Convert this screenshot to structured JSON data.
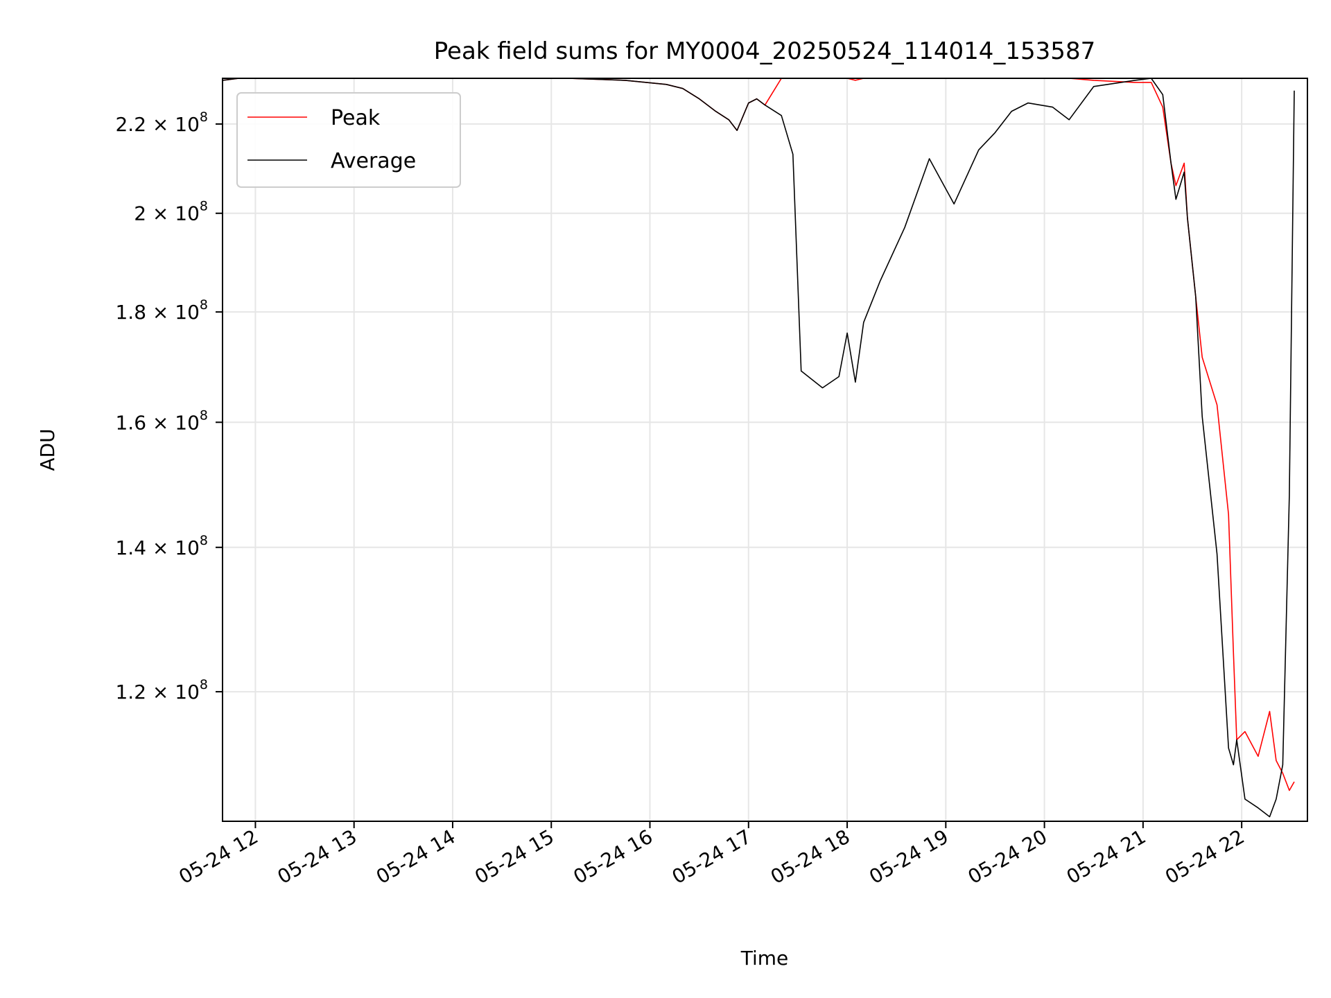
{
  "chart_data": {
    "type": "line",
    "title": "Peak field sums for MY0004_20250524_114014_153587",
    "xlabel": "Time",
    "ylabel": "ADU",
    "yscale": "log",
    "ylim": [
      104500000,
      231000000
    ],
    "xlim": [
      "05-24 11:40",
      "05-24 22:40"
    ],
    "grid": true,
    "legend_position": "upper left",
    "x_ticks": [
      "05-24 12",
      "05-24 13",
      "05-24 14",
      "05-24 15",
      "05-24 16",
      "05-24 17",
      "05-24 18",
      "05-24 19",
      "05-24 20",
      "05-24 21",
      "05-24 22"
    ],
    "y_ticks": [
      {
        "value": 120000000,
        "mantissa": "1.2",
        "exponent": "8"
      },
      {
        "value": 140000000,
        "mantissa": "1.4",
        "exponent": "8"
      },
      {
        "value": 160000000,
        "mantissa": "1.6",
        "exponent": "8"
      },
      {
        "value": 180000000,
        "mantissa": "1.8",
        "exponent": "8"
      },
      {
        "value": 200000000,
        "mantissa": "2",
        "exponent": "8"
      },
      {
        "value": 220000000,
        "mantissa": "2.2",
        "exponent": "8"
      }
    ],
    "series": [
      {
        "name": "Peak",
        "color": "#ff0000",
        "linewidth": 1,
        "x": [
          "05-24 11:40",
          "05-24 11:50",
          "05-24 14:10",
          "05-24 15:10",
          "05-24 15:45",
          "05-24 16:10",
          "05-24 16:20",
          "05-24 16:30",
          "05-24 16:40",
          "05-24 16:48",
          "05-24 16:53",
          "05-24 17:00",
          "05-24 17:05",
          "05-24 17:10",
          "05-24 17:20",
          "05-24 17:27",
          "05-24 17:32",
          "05-24 17:45",
          "05-24 17:55",
          "05-24 18:00",
          "05-24 18:05",
          "05-24 18:10",
          "05-24 18:20",
          "05-24 18:35",
          "05-24 18:50",
          "05-24 19:05",
          "05-24 19:20",
          "05-24 19:30",
          "05-24 19:40",
          "05-24 19:50",
          "05-24 20:05",
          "05-24 20:15",
          "05-24 20:30",
          "05-24 20:55",
          "05-24 21:05",
          "05-24 21:12",
          "05-24 21:17",
          "05-24 21:20",
          "05-24 21:25",
          "05-24 21:27",
          "05-24 21:32",
          "05-24 21:36",
          "05-24 21:45",
          "05-24 21:52",
          "05-24 21:55",
          "05-24 21:57",
          "05-24 22:02",
          "05-24 22:10",
          "05-24 22:17",
          "05-24 22:21",
          "05-24 22:25",
          "05-24 22:29",
          "05-24 22:32"
        ],
        "values": [
          230500000,
          231000000,
          231000000,
          231000000,
          230500000,
          229500000,
          228500000,
          226000000,
          223000000,
          221000000,
          218500000,
          225000000,
          226000000,
          224500000,
          231000000,
          231000000,
          231000000,
          231000000,
          231000000,
          231000000,
          230500000,
          231000000,
          231000000,
          231000000,
          231000000,
          231000000,
          231000000,
          231000000,
          231000000,
          231000000,
          231000000,
          231000000,
          230500000,
          230000000,
          230000000,
          224000000,
          211000000,
          206000000,
          211000000,
          199000000,
          183000000,
          171500000,
          163000000,
          145000000,
          125000000,
          114000000,
          115000000,
          112000000,
          117500000,
          111500000,
          110000000,
          108000000,
          109000000
        ]
      },
      {
        "name": "Average",
        "color": "#000000",
        "linewidth": 1,
        "x": [
          "05-24 11:40",
          "05-24 11:50",
          "05-24 14:10",
          "05-24 15:10",
          "05-24 15:45",
          "05-24 16:10",
          "05-24 16:20",
          "05-24 16:30",
          "05-24 16:40",
          "05-24 16:48",
          "05-24 16:53",
          "05-24 17:00",
          "05-24 17:05",
          "05-24 17:10",
          "05-24 17:20",
          "05-24 17:27",
          "05-24 17:32",
          "05-24 17:45",
          "05-24 17:55",
          "05-24 18:00",
          "05-24 18:05",
          "05-24 18:10",
          "05-24 18:20",
          "05-24 18:35",
          "05-24 18:50",
          "05-24 19:05",
          "05-24 19:20",
          "05-24 19:30",
          "05-24 19:40",
          "05-24 19:50",
          "05-24 20:05",
          "05-24 20:15",
          "05-24 20:30",
          "05-24 20:55",
          "05-24 21:05",
          "05-24 21:12",
          "05-24 21:17",
          "05-24 21:20",
          "05-24 21:25",
          "05-24 21:27",
          "05-24 21:32",
          "05-24 21:36",
          "05-24 21:45",
          "05-24 21:52",
          "05-24 21:55",
          "05-24 21:57",
          "05-24 22:02",
          "05-24 22:10",
          "05-24 22:17",
          "05-24 22:21",
          "05-24 22:25",
          "05-24 22:29",
          "05-24 22:32"
        ],
        "values": [
          230500000,
          231000000,
          231000000,
          231000000,
          230500000,
          229500000,
          228500000,
          226000000,
          223000000,
          221000000,
          218500000,
          225000000,
          226000000,
          224500000,
          222000000,
          213000000,
          169000000,
          166000000,
          168000000,
          176000000,
          167000000,
          178000000,
          186000000,
          197000000,
          212000000,
          202000000,
          214000000,
          218000000,
          223000000,
          225000000,
          224000000,
          221000000,
          229000000,
          230500000,
          231000000,
          227000000,
          211000000,
          203000000,
          209000000,
          199000000,
          183000000,
          161000000,
          139000000,
          113000000,
          111000000,
          114000000,
          107000000,
          106000000,
          105000000,
          107000000,
          111000000,
          148000000,
          228000000
        ]
      }
    ]
  }
}
